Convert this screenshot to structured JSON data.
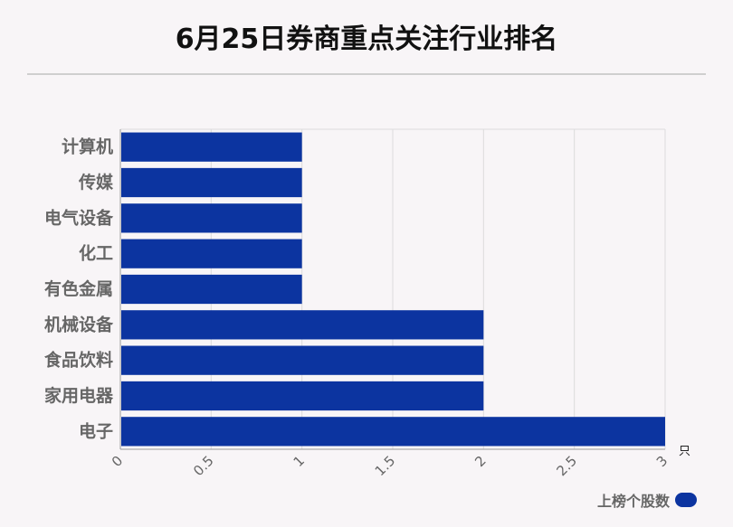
{
  "title": "6月25日券商重点关注行业排名",
  "chart_data": {
    "type": "bar",
    "orientation": "horizontal",
    "categories": [
      "计算机",
      "传媒",
      "电气设备",
      "化工",
      "有色金属",
      "机械设备",
      "食品饮料",
      "家用电器",
      "电子"
    ],
    "series": [
      {
        "name": "上榜个股数",
        "values": [
          1,
          1,
          1,
          1,
          1,
          2,
          2,
          2,
          3
        ],
        "color": "#0c34a0"
      }
    ],
    "xlim": [
      0,
      3
    ],
    "xticks": [
      "0",
      "0.5",
      "1",
      "1.5",
      "2",
      "2.5",
      "3"
    ],
    "xunit": "只",
    "grid": true,
    "legend_position": "bottom-right"
  }
}
